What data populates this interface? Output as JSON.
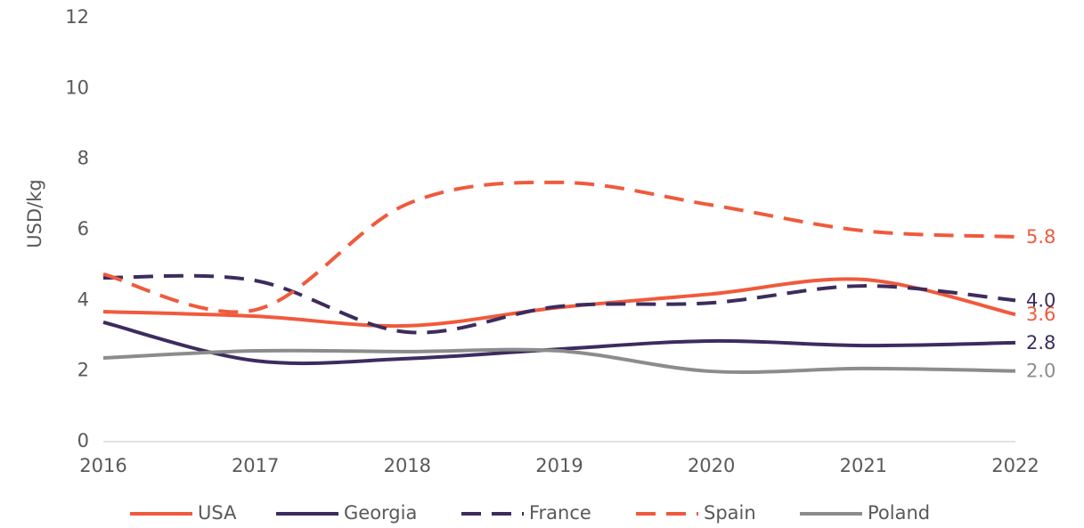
{
  "chart_data": {
    "type": "line",
    "y_label": "USD/kg",
    "categories": [
      "2016",
      "2017",
      "2018",
      "2019",
      "2020",
      "2021",
      "2022"
    ],
    "ylim": [
      0,
      12
    ],
    "yticks": [
      0,
      2,
      4,
      6,
      8,
      10,
      12
    ],
    "smooth": true,
    "series": [
      {
        "name": "USA",
        "color": "#f05a3c",
        "dashed": false,
        "values": [
          3.68,
          3.55,
          3.28,
          3.8,
          4.18,
          4.59,
          3.6
        ],
        "value_labels": [
          null,
          null,
          null,
          null,
          null,
          null,
          "3.6"
        ]
      },
      {
        "name": "Georgia",
        "color": "#3d2c5e",
        "dashed": false,
        "values": [
          3.38,
          2.29,
          2.35,
          2.62,
          2.85,
          2.72,
          2.8
        ],
        "value_labels": [
          null,
          null,
          null,
          null,
          null,
          null,
          "2.8"
        ]
      },
      {
        "name": "France",
        "color": "#3d2c5e",
        "dashed": true,
        "values": [
          4.64,
          4.56,
          3.1,
          3.83,
          3.93,
          4.41,
          4.0
        ],
        "value_labels": [
          null,
          null,
          null,
          null,
          null,
          null,
          "4.0"
        ]
      },
      {
        "name": "Spain",
        "color": "#f05a3c",
        "dashed": true,
        "values": [
          4.74,
          3.73,
          6.73,
          7.34,
          6.7,
          5.97,
          5.8
        ],
        "value_labels": [
          null,
          null,
          null,
          null,
          null,
          null,
          "5.8"
        ]
      },
      {
        "name": "Poland",
        "color": "#8c8c8c",
        "dashed": false,
        "values": [
          2.37,
          2.57,
          2.55,
          2.57,
          1.99,
          2.07,
          2.0
        ],
        "value_labels": [
          null,
          null,
          null,
          null,
          null,
          null,
          "2.0"
        ]
      }
    ]
  }
}
